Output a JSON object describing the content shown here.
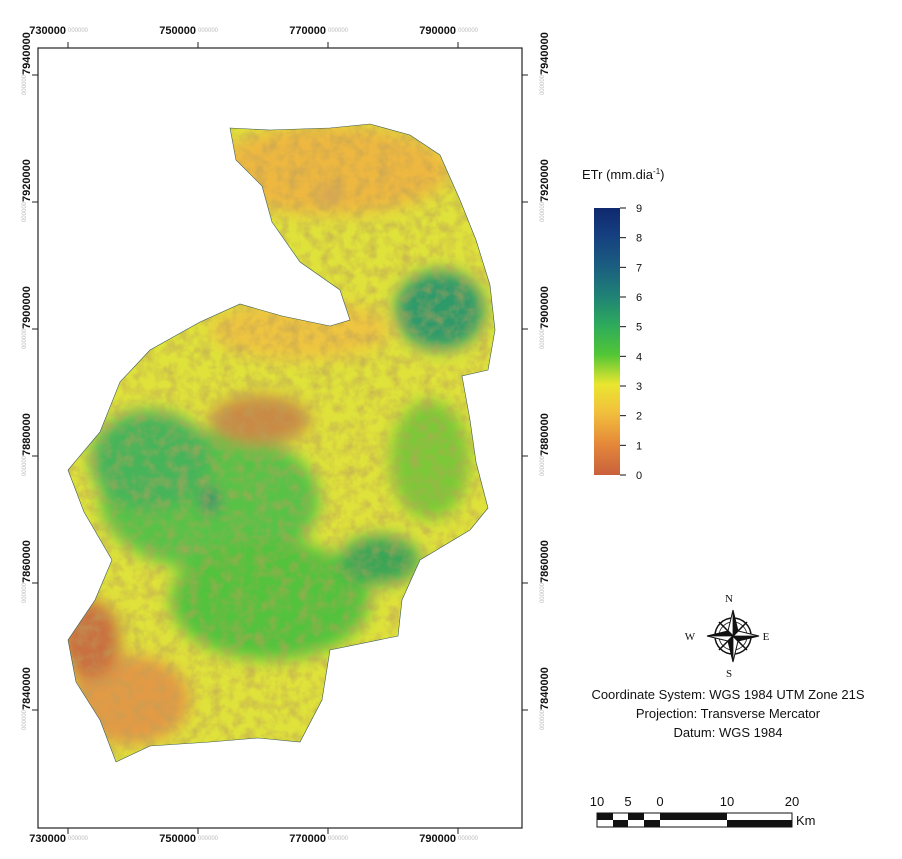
{
  "map": {
    "easting_ticks": [
      730000,
      750000,
      770000,
      790000
    ],
    "northing_ticks": [
      7940000,
      7920000,
      7900000,
      7880000,
      7860000,
      7840000
    ],
    "tick_suffix": "000000"
  },
  "legend": {
    "title": "ETr (mm.dia",
    "title_superscript": "-1",
    "title_close": ")",
    "ticks": [
      0,
      1,
      2,
      3,
      4,
      5,
      6,
      7,
      8,
      9
    ]
  },
  "compass": {
    "north": "N",
    "south": "S",
    "east": "E",
    "west": "W"
  },
  "info": {
    "coordinate_system": "Coordinate System: WGS 1984 UTM Zone 21S",
    "projection": "Projection: Transverse Mercator",
    "datum": "Datum: WGS 1984"
  },
  "scale_bar": {
    "labels": [
      "10",
      "5",
      "0",
      "10",
      "20"
    ],
    "unit": "Km"
  }
}
